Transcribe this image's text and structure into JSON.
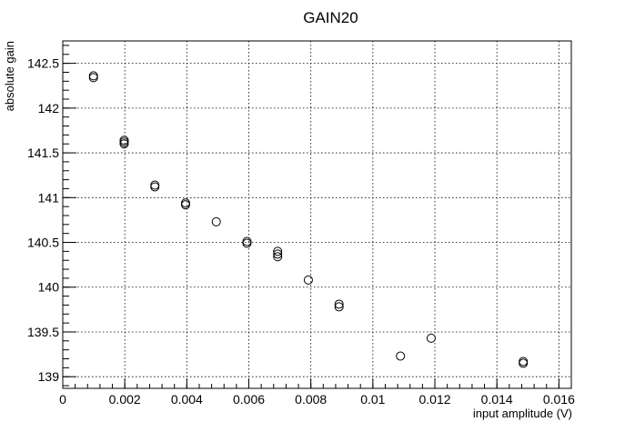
{
  "chart_data": {
    "type": "scatter",
    "title": "GAIN20",
    "xlabel": "input amplitude (V)",
    "ylabel": "absolute gain",
    "xlim": [
      0,
      0.0164
    ],
    "ylim": [
      138.87,
      142.75
    ],
    "x_ticks": [
      0,
      0.002,
      0.004,
      0.006,
      0.008,
      0.01,
      0.012,
      0.014,
      0.016
    ],
    "x_tick_labels": [
      "0",
      "0.002",
      "0.004",
      "0.006",
      "0.008",
      "0.01",
      "0.012",
      "0.014",
      "0.016"
    ],
    "y_ticks": [
      139,
      139.5,
      140,
      140.5,
      141,
      141.5,
      142,
      142.5
    ],
    "y_tick_labels": [
      "139",
      "139.5",
      "140",
      "140.5",
      "141",
      "141.5",
      "142",
      "142.5"
    ],
    "grid": true,
    "marker": "open-circle",
    "series": [
      {
        "points": [
          {
            "x": 0.00099,
            "y": 142.36
          },
          {
            "x": 0.00099,
            "y": 142.34
          },
          {
            "x": 0.00198,
            "y": 141.64
          },
          {
            "x": 0.00198,
            "y": 141.62
          },
          {
            "x": 0.00198,
            "y": 141.6
          },
          {
            "x": 0.00297,
            "y": 141.14
          },
          {
            "x": 0.00297,
            "y": 141.12
          },
          {
            "x": 0.00396,
            "y": 140.94
          },
          {
            "x": 0.00396,
            "y": 140.92
          },
          {
            "x": 0.00495,
            "y": 140.73
          },
          {
            "x": 0.00594,
            "y": 140.51
          },
          {
            "x": 0.00594,
            "y": 140.49
          },
          {
            "x": 0.00693,
            "y": 140.4
          },
          {
            "x": 0.00693,
            "y": 140.37
          },
          {
            "x": 0.00693,
            "y": 140.34
          },
          {
            "x": 0.00792,
            "y": 140.08
          },
          {
            "x": 0.00891,
            "y": 139.81
          },
          {
            "x": 0.00891,
            "y": 139.78
          },
          {
            "x": 0.01089,
            "y": 139.23
          },
          {
            "x": 0.01188,
            "y": 139.43
          },
          {
            "x": 0.01485,
            "y": 139.17
          },
          {
            "x": 0.01485,
            "y": 139.15
          }
        ]
      }
    ]
  }
}
